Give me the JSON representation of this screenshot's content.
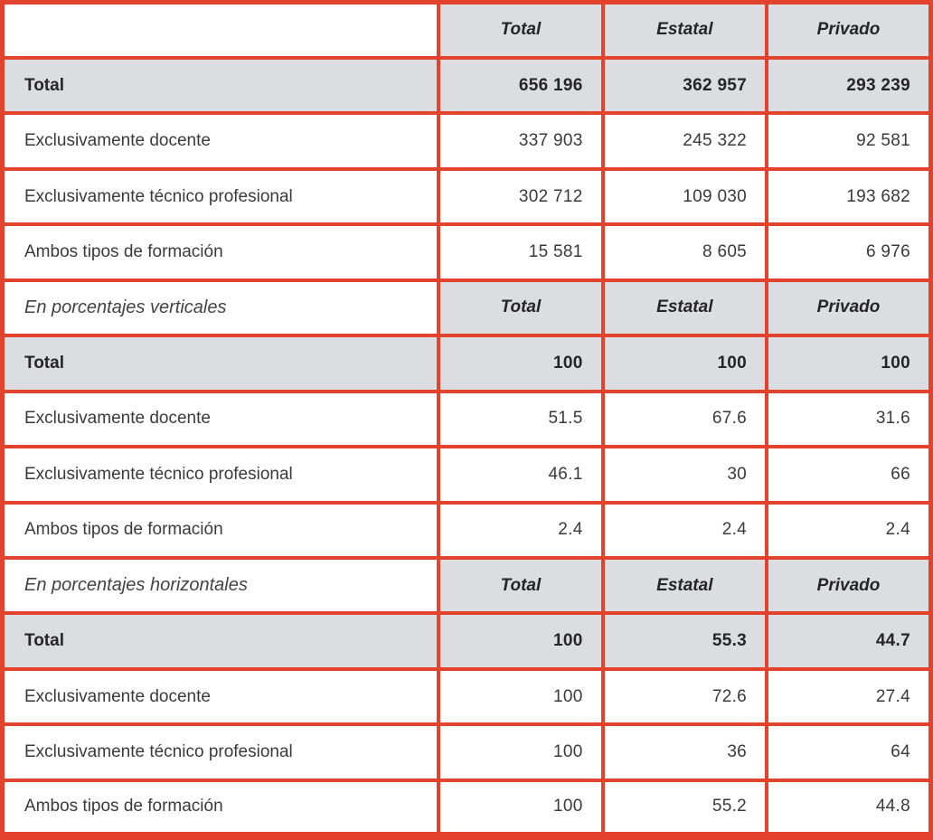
{
  "colors": {
    "border_red": "#e3432c",
    "row_gray": "#dcdde1",
    "text_bold": "#262529",
    "text_body": "#3a393d",
    "background": "#ffffff"
  },
  "table": {
    "sections": [
      {
        "title": "",
        "columns": [
          "Total",
          "Estatal",
          "Privado"
        ],
        "rows": [
          {
            "label": "Total",
            "values": [
              "656 196",
              "362 957",
              "293 239"
            ]
          },
          {
            "label": "Exclusivamente docente",
            "values": [
              "337 903",
              "245 322",
              "92 581"
            ]
          },
          {
            "label": "Exclusivamente técnico profesional",
            "values": [
              "302 712",
              "109 030",
              "193 682"
            ]
          },
          {
            "label": "Ambos tipos de formación",
            "values": [
              "15 581",
              "8 605",
              "6 976"
            ]
          }
        ]
      },
      {
        "title": "En porcentajes verticales",
        "columns": [
          "Total",
          "Estatal",
          "Privado"
        ],
        "rows": [
          {
            "label": "Total",
            "values": [
              "100",
              "100",
              "100"
            ]
          },
          {
            "label": "Exclusivamente docente",
            "values": [
              "51.5",
              "67.6",
              "31.6"
            ]
          },
          {
            "label": "Exclusivamente técnico profesional",
            "values": [
              "46.1",
              "30",
              "66"
            ]
          },
          {
            "label": "Ambos tipos de formación",
            "values": [
              "2.4",
              "2.4",
              "2.4"
            ]
          }
        ]
      },
      {
        "title": "En porcentajes horizontales",
        "columns": [
          "Total",
          "Estatal",
          "Privado"
        ],
        "rows": [
          {
            "label": "Total",
            "values": [
              "100",
              "55.3",
              "44.7"
            ]
          },
          {
            "label": "Exclusivamente docente",
            "values": [
              "100",
              "72.6",
              "27.4"
            ]
          },
          {
            "label": "Exclusivamente técnico profesional",
            "values": [
              "100",
              "36",
              "64"
            ]
          },
          {
            "label": "Ambos tipos de formación",
            "values": [
              "100",
              "55.2",
              "44.8"
            ]
          }
        ]
      }
    ]
  }
}
